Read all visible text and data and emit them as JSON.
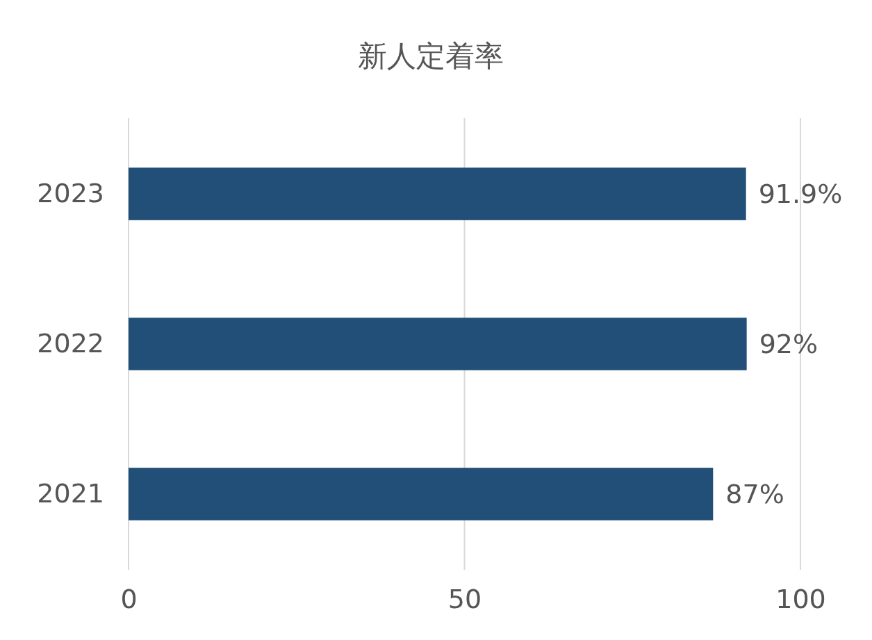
{
  "chart_data": {
    "type": "bar",
    "orientation": "horizontal",
    "title": "新人定着率",
    "categories": [
      "2023",
      "2022",
      "2021"
    ],
    "values": [
      91.9,
      92,
      87
    ],
    "value_labels": [
      "91.9%",
      "92%",
      "87%"
    ],
    "color": "#214f77",
    "xlim": [
      0,
      100
    ],
    "xticks": [
      0,
      50,
      100
    ],
    "grid": "x"
  }
}
